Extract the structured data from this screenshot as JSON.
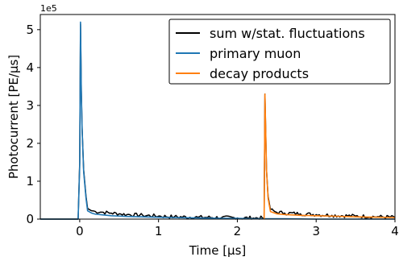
{
  "chart_data": {
    "type": "line",
    "xlabel": "Time [μs]",
    "ylabel": "Photocurrent [PE/μs]",
    "y_offset_label": "1e5",
    "xlim": [
      -0.5,
      4.0
    ],
    "ylim": [
      0,
      5.4
    ],
    "x_ticks": [
      0,
      1,
      2,
      3,
      4
    ],
    "x_tick_labels": [
      "0",
      "1",
      "2",
      "3",
      "4"
    ],
    "y_ticks": [
      0,
      1,
      2,
      3,
      4,
      5
    ],
    "y_tick_labels": [
      "0",
      "1",
      "2",
      "3",
      "4",
      "5"
    ],
    "grid": false,
    "legend_position": "top-right",
    "colors": {
      "sum": "#000000",
      "muon": "#1f77b4",
      "decay": "#ff7f0e"
    },
    "series": [
      {
        "name": "sum w/stat. fluctuations",
        "color": "#000000",
        "x": [
          -0.5,
          -0.02,
          0.0,
          0.01,
          0.02,
          0.03,
          0.05,
          0.08,
          0.1,
          0.15,
          0.2,
          0.3,
          0.4,
          0.5,
          0.6,
          0.8,
          1.0,
          1.2,
          1.5,
          1.8,
          2.0,
          2.2,
          2.34,
          2.35,
          2.36,
          2.37,
          2.39,
          2.42,
          2.5,
          2.6,
          2.8,
          3.0,
          3.2,
          3.5,
          3.8,
          4.0
        ],
        "y": [
          0,
          0,
          1.5,
          5.15,
          3.4,
          2.4,
          1.3,
          0.6,
          0.28,
          0.22,
          0.2,
          0.18,
          0.16,
          0.14,
          0.12,
          0.1,
          0.08,
          0.06,
          0.05,
          0.04,
          0.03,
          0.03,
          0.03,
          3.3,
          2.3,
          1.3,
          0.6,
          0.25,
          0.18,
          0.16,
          0.14,
          0.12,
          0.1,
          0.08,
          0.06,
          0.05
        ]
      },
      {
        "name": "primary muon",
        "color": "#1f77b4",
        "x": [
          -0.5,
          -0.02,
          0.0,
          0.01,
          0.02,
          0.03,
          0.05,
          0.08,
          0.1,
          0.15,
          0.2,
          0.3,
          0.4,
          0.5,
          0.6,
          0.8,
          1.0,
          1.2,
          1.5,
          1.8,
          2.0,
          2.2,
          2.4,
          2.6,
          3.0,
          3.5,
          4.0
        ],
        "y": [
          0,
          0,
          1.4,
          5.2,
          3.4,
          2.4,
          1.25,
          0.55,
          0.22,
          0.16,
          0.13,
          0.11,
          0.09,
          0.08,
          0.07,
          0.06,
          0.05,
          0.04,
          0.03,
          0.02,
          0.02,
          0.01,
          0.01,
          0.01,
          0.0,
          0.0,
          0.0
        ]
      },
      {
        "name": "decay products",
        "color": "#ff7f0e",
        "x": [
          2.34,
          2.35,
          2.36,
          2.37,
          2.39,
          2.42,
          2.5,
          2.6,
          2.8,
          3.0,
          3.2,
          3.5,
          3.8,
          4.0
        ],
        "y": [
          0,
          3.3,
          2.3,
          1.3,
          0.55,
          0.2,
          0.14,
          0.12,
          0.1,
          0.09,
          0.08,
          0.06,
          0.05,
          0.04
        ]
      }
    ]
  }
}
